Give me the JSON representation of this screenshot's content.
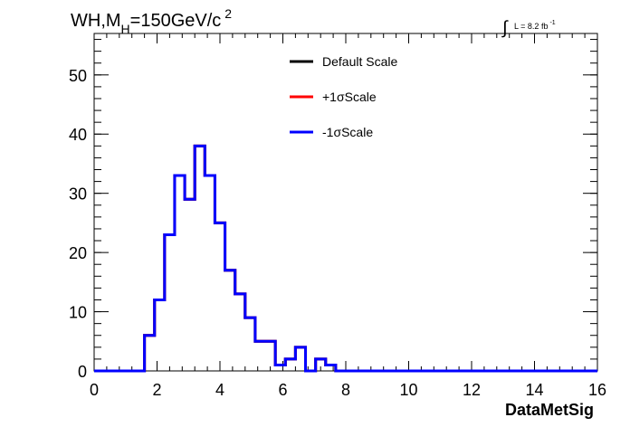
{
  "chart_data": {
    "type": "histogram",
    "title_main": "WH,M",
    "title_sub": "H",
    "title_rest": "=150GeV/c",
    "title_sup": "2",
    "lumi_text": "L = 8.2 fb",
    "lumi_sup": "-1",
    "xlabel": "DataMetSig",
    "ylabel": "",
    "xlim": [
      0,
      16
    ],
    "ylim": [
      0,
      57
    ],
    "x_ticks": [
      "0",
      "2",
      "4",
      "6",
      "8",
      "10",
      "12",
      "14",
      "16"
    ],
    "y_ticks": [
      "0",
      "10",
      "20",
      "30",
      "40",
      "50"
    ],
    "bin_width": 0.32,
    "bin_values": [
      0,
      0,
      0,
      0,
      0,
      6,
      12,
      23,
      33,
      29,
      38,
      33,
      25,
      17,
      13,
      9,
      5,
      5,
      1,
      2,
      4,
      0,
      2,
      1,
      0,
      0,
      0,
      0,
      0,
      0,
      0,
      0,
      0,
      0,
      0,
      0,
      0,
      0,
      0,
      0,
      0,
      0,
      0,
      0,
      0,
      0,
      0,
      0,
      0,
      0
    ],
    "legend_position": "top-center",
    "series": [
      {
        "name": "Default Scale",
        "color": "#000000"
      },
      {
        "name": "+1σScale",
        "color": "#ff0000"
      },
      {
        "name": "-1σScale",
        "color": "#0000ff"
      }
    ]
  }
}
